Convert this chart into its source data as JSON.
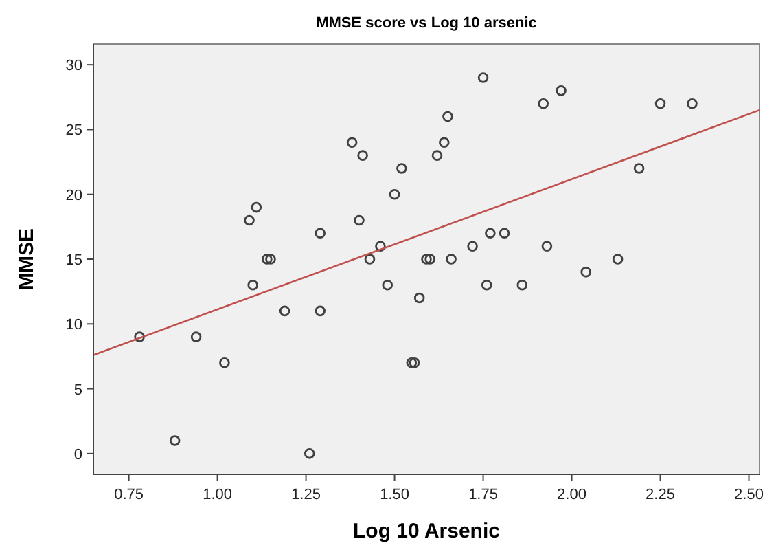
{
  "chart_data": {
    "type": "scatter",
    "title": "MMSE score vs Log 10 arsenic",
    "xlabel": "Log 10 Arsenic",
    "ylabel": "MMSE",
    "xlim": [
      0.65,
      2.53
    ],
    "ylim": [
      -1.6,
      31.6
    ],
    "xticks": [
      {
        "value": 0.75,
        "label": "0.75"
      },
      {
        "value": 1,
        "label": "1.00"
      },
      {
        "value": 1.25,
        "label": "1.25"
      },
      {
        "value": 1.5,
        "label": "1.50"
      },
      {
        "value": 1.75,
        "label": "1.75"
      },
      {
        "value": 2,
        "label": "2.00"
      },
      {
        "value": 2.25,
        "label": "2.25"
      },
      {
        "value": 2.5,
        "label": "2.50"
      }
    ],
    "yticks": [
      0,
      5,
      10,
      15,
      20,
      25,
      30
    ],
    "grid": false,
    "marker": "circle",
    "series": [
      {
        "color": "#404040",
        "x": [
          0.78,
          0.88,
          0.94,
          1.02,
          1.09,
          1.1,
          1.11,
          1.14,
          1.15,
          1.19,
          1.26,
          1.29,
          1.29,
          1.38,
          1.4,
          1.41,
          1.43,
          1.46,
          1.48,
          1.5,
          1.52,
          1.548,
          1.556,
          1.57,
          1.59,
          1.6,
          1.62,
          1.64,
          1.65,
          1.66,
          1.72,
          1.75,
          1.76,
          1.77,
          1.81,
          1.86,
          1.92,
          1.93,
          1.97,
          2.04,
          2.13,
          2.19,
          2.25,
          2.34
        ],
        "values": [
          9,
          1,
          9,
          7,
          18,
          13,
          19,
          15,
          15,
          11,
          0,
          17,
          11,
          24,
          18,
          23,
          15,
          16,
          13,
          20,
          22,
          7,
          7,
          12,
          15,
          15,
          23,
          24,
          26,
          15,
          16,
          29,
          13,
          17,
          17,
          13,
          27,
          16,
          28,
          14,
          15,
          22,
          27,
          27
        ]
      },
      {
        "type": "line",
        "color": "#c0504d",
        "marker": "none",
        "line_style": "solid",
        "x": [
          0.65,
          2.53
        ],
        "values": [
          7.6,
          26.5
        ]
      }
    ]
  }
}
